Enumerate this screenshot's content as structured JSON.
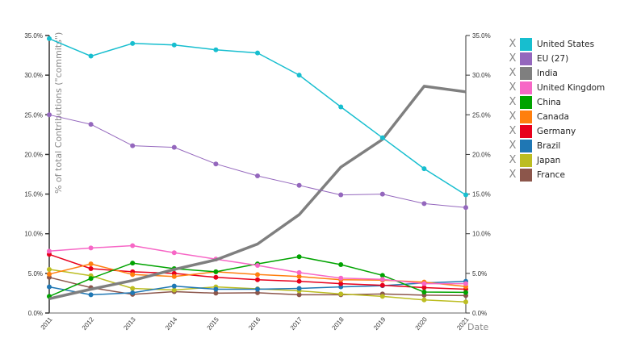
{
  "chart_data": {
    "type": "line",
    "title": "",
    "xlabel": "Date",
    "ylabel": "% of total Contributions (\"commits\")",
    "ylim": [
      0,
      35
    ],
    "y_ticks": [
      "0.0%",
      "5.0%",
      "10.0%",
      "15.0%",
      "20.0%",
      "25.0%",
      "30.0%",
      "35.0%"
    ],
    "y_ticks_right": [
      "0.0%",
      "5.0%",
      "10.0%",
      "15.0%",
      "20.0%",
      "25.0%",
      "30.0%",
      "35.0%"
    ],
    "grid": false,
    "legend_position": "right",
    "categories": [
      "2011",
      "2012",
      "2013",
      "2014",
      "2015",
      "2016",
      "2017",
      "2018",
      "2019",
      "2020",
      "2021"
    ],
    "series": [
      {
        "name": "United States",
        "color": "#17becf",
        "width": 1.5,
        "values": [
          34.6,
          32.4,
          34.0,
          33.8,
          33.2,
          32.8,
          30.0,
          26.0,
          22.1,
          18.2,
          14.9
        ]
      },
      {
        "name": "EU (27)",
        "color": "#9467bd",
        "width": 1,
        "values": [
          25.0,
          23.8,
          21.1,
          20.9,
          18.8,
          17.3,
          16.1,
          14.9,
          15.0,
          13.8,
          13.3
        ]
      },
      {
        "name": "India",
        "color": "#7f7f7f",
        "width": 3.5,
        "values": [
          1.8,
          3.0,
          4.1,
          5.5,
          6.7,
          8.7,
          12.4,
          18.4,
          21.9,
          28.6,
          27.9
        ]
      },
      {
        "name": "United Kingdom",
        "color": "#f767c6",
        "width": 1.5,
        "values": [
          7.8,
          8.2,
          8.5,
          7.6,
          6.8,
          6.0,
          5.1,
          4.4,
          4.25,
          3.7,
          3.7
        ]
      },
      {
        "name": "China",
        "color": "#00a300",
        "width": 1.5,
        "values": [
          2.1,
          4.35,
          6.3,
          5.6,
          5.2,
          6.2,
          7.1,
          6.1,
          4.75,
          2.65,
          2.6
        ]
      },
      {
        "name": "Canada",
        "color": "#ff7f0e",
        "width": 1.5,
        "values": [
          4.9,
          6.2,
          4.85,
          4.6,
          5.2,
          4.85,
          4.6,
          4.2,
          4.15,
          3.9,
          3.35
        ]
      },
      {
        "name": "Germany",
        "color": "#e8001c",
        "width": 1.5,
        "values": [
          7.4,
          5.6,
          5.2,
          5.0,
          4.5,
          4.2,
          4.0,
          3.7,
          3.5,
          3.2,
          3.0
        ]
      },
      {
        "name": "Brazil",
        "color": "#1f77b4",
        "width": 1.5,
        "values": [
          3.3,
          2.3,
          2.55,
          3.4,
          3.0,
          3.0,
          3.1,
          3.3,
          3.45,
          3.8,
          4.0
        ]
      },
      {
        "name": "Japan",
        "color": "#bcbd22",
        "width": 1.5,
        "values": [
          5.5,
          4.7,
          3.1,
          2.9,
          3.3,
          3.05,
          2.8,
          2.4,
          2.1,
          1.65,
          1.4
        ]
      },
      {
        "name": "France",
        "color": "#8c564b",
        "width": 1.5,
        "values": [
          4.5,
          3.2,
          2.35,
          2.7,
          2.5,
          2.55,
          2.3,
          2.3,
          2.4,
          2.25,
          2.2
        ]
      }
    ]
  },
  "legend": {
    "remove_glyph": "X",
    "items": [
      {
        "label": "United States",
        "color": "#17becf"
      },
      {
        "label": "EU (27)",
        "color": "#9467bd"
      },
      {
        "label": "India",
        "color": "#7f7f7f"
      },
      {
        "label": "United Kingdom",
        "color": "#f767c6"
      },
      {
        "label": "China",
        "color": "#00a300"
      },
      {
        "label": "Canada",
        "color": "#ff7f0e"
      },
      {
        "label": "Germany",
        "color": "#e8001c"
      },
      {
        "label": "Brazil",
        "color": "#1f77b4"
      },
      {
        "label": "Japan",
        "color": "#bcbd22"
      },
      {
        "label": "France",
        "color": "#8c564b"
      }
    ]
  }
}
